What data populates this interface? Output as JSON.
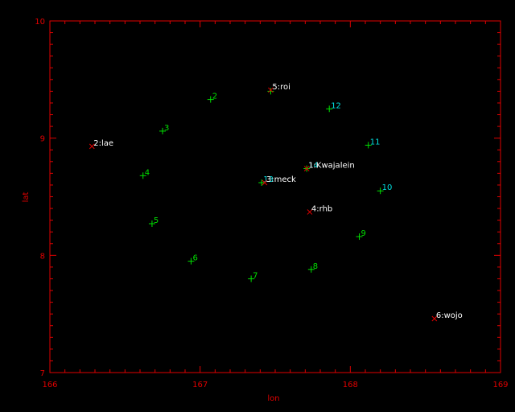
{
  "chart_data": {
    "type": "scatter",
    "xlabel": "lon",
    "ylabel": "lat",
    "xlim": [
      166,
      169
    ],
    "ylim": [
      7,
      10
    ],
    "xticks": [
      166,
      167,
      168,
      169
    ],
    "yticks": [
      7,
      8,
      9,
      10
    ],
    "grid": false,
    "axis_color": "#e00000",
    "series": [
      {
        "marker": "plus",
        "marker_color": "#00e000",
        "points": [
          {
            "x": 167.07,
            "y": 9.33,
            "label": "2",
            "label_color": "#00e000"
          },
          {
            "x": 166.75,
            "y": 9.06,
            "label": "3",
            "label_color": "#00e000"
          },
          {
            "x": 166.62,
            "y": 8.68,
            "label": "4",
            "label_color": "#00e000"
          },
          {
            "x": 166.68,
            "y": 8.27,
            "label": "5",
            "label_color": "#00e000"
          },
          {
            "x": 166.94,
            "y": 7.95,
            "label": "6",
            "label_color": "#00e000"
          },
          {
            "x": 167.34,
            "y": 7.8,
            "label": "7",
            "label_color": "#00e000"
          },
          {
            "x": 167.74,
            "y": 7.88,
            "label": "8",
            "label_color": "#00e000"
          },
          {
            "x": 168.06,
            "y": 8.16,
            "label": "9",
            "label_color": "#00e000"
          },
          {
            "x": 168.2,
            "y": 8.55,
            "label": "10",
            "label_color": "#00e0e0"
          },
          {
            "x": 168.12,
            "y": 8.94,
            "label": "11",
            "label_color": "#00e0e0"
          },
          {
            "x": 167.86,
            "y": 9.25,
            "label": "12",
            "label_color": "#00e0e0"
          },
          {
            "x": 167.41,
            "y": 8.62,
            "label": "13",
            "label_color": "#00e0e0"
          },
          {
            "x": 167.71,
            "y": 8.74,
            "label": "14",
            "label_color": "#00e0e0"
          },
          {
            "x": 167.47,
            "y": 9.4,
            "label": "",
            "label_color": "#00e0e0"
          }
        ]
      },
      {
        "marker": "x",
        "marker_color": "#e00000",
        "points": [
          {
            "x": 167.47,
            "y": 9.41,
            "label": "5:roi",
            "label_color": "#ffffff"
          },
          {
            "x": 166.28,
            "y": 8.93,
            "label": "2:lae",
            "label_color": "#ffffff"
          },
          {
            "x": 167.71,
            "y": 8.74,
            "label": "1:Kwajalein",
            "label_color": "#ffffff"
          },
          {
            "x": 167.43,
            "y": 8.62,
            "label": "3:meck",
            "label_color": "#ffffff"
          },
          {
            "x": 167.73,
            "y": 8.37,
            "label": "4:rhb",
            "label_color": "#ffffff"
          },
          {
            "x": 168.56,
            "y": 7.46,
            "label": "6:wojo",
            "label_color": "#ffffff"
          }
        ]
      }
    ]
  }
}
